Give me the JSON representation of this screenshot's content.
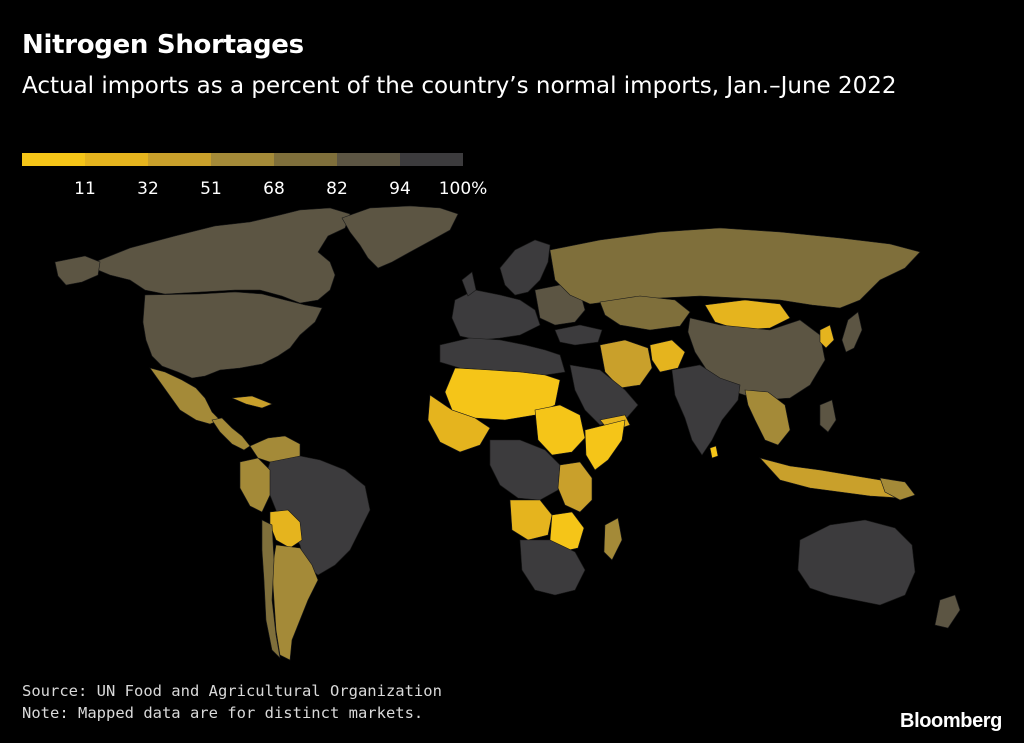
{
  "header": {
    "title": "Nitrogen Shortages",
    "subtitle": "Actual imports as a percent of the country’s normal imports, Jan.–June 2022"
  },
  "legend": {
    "colors": [
      "#f5c518",
      "#e5b41e",
      "#c9a02b",
      "#a48a38",
      "#7f6f3b",
      "#5c5543",
      "#3c3b3d"
    ],
    "ticks": [
      "11",
      "32",
      "51",
      "68",
      "82",
      "94",
      "100%"
    ]
  },
  "map": {
    "colors": {
      "c0": "#f5c518",
      "c1": "#e5b41e",
      "c2": "#c9a02b",
      "c3": "#a48a38",
      "c4": "#7f6f3b",
      "c5": "#5c5543",
      "c6": "#3c3b3d"
    }
  },
  "footer": {
    "source": "Source: UN Food and Agricultural Organization",
    "note": "Note: Mapped data are for distinct markets.",
    "brand": "Bloomberg"
  }
}
